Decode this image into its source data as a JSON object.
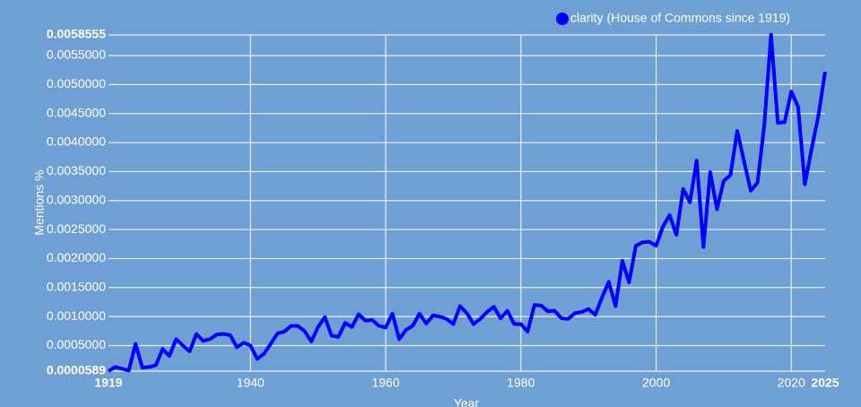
{
  "chart_data": {
    "type": "line",
    "legend_label": "clarity (House of Commons since 1919)",
    "xlabel": "Year",
    "ylabel": "Mentions %",
    "legend_position": "top-right",
    "grid": true,
    "x": [
      1919,
      1920,
      1921,
      1922,
      1923,
      1924,
      1925,
      1926,
      1927,
      1928,
      1929,
      1930,
      1931,
      1932,
      1933,
      1934,
      1935,
      1936,
      1937,
      1938,
      1939,
      1940,
      1941,
      1942,
      1943,
      1944,
      1945,
      1946,
      1947,
      1948,
      1949,
      1950,
      1951,
      1952,
      1953,
      1954,
      1955,
      1956,
      1957,
      1958,
      1959,
      1960,
      1961,
      1962,
      1963,
      1964,
      1965,
      1966,
      1967,
      1968,
      1969,
      1970,
      1971,
      1972,
      1973,
      1974,
      1975,
      1976,
      1977,
      1978,
      1979,
      1980,
      1981,
      1982,
      1983,
      1984,
      1985,
      1986,
      1987,
      1988,
      1989,
      1990,
      1991,
      1992,
      1993,
      1994,
      1995,
      1996,
      1997,
      1998,
      1999,
      2000,
      2001,
      2002,
      2003,
      2004,
      2005,
      2006,
      2007,
      2008,
      2009,
      2010,
      2011,
      2012,
      2013,
      2014,
      2015,
      2016,
      2017,
      2018,
      2019,
      2020,
      2021,
      2022,
      2023,
      2024,
      2025
    ],
    "series": [
      {
        "name": "clarity (House of Commons since 1919)",
        "color": "#0000ff",
        "values": [
          6e-05,
          0.00013,
          0.0001,
          7e-05,
          0.00053,
          0.00012,
          0.00013,
          0.00016,
          0.00044,
          0.00032,
          0.00061,
          0.0005,
          0.0004,
          0.0007,
          0.00058,
          0.00061,
          0.00069,
          0.0007,
          0.00068,
          0.00047,
          0.00055,
          0.0005,
          0.00027,
          0.00036,
          0.00053,
          0.00071,
          0.00074,
          0.00084,
          0.00084,
          0.00075,
          0.00057,
          0.00082,
          0.00099,
          0.00067,
          0.00065,
          0.00089,
          0.00082,
          0.00104,
          0.00093,
          0.00094,
          0.00084,
          0.00081,
          0.00105,
          0.00061,
          0.00077,
          0.00084,
          0.00105,
          0.00088,
          0.00102,
          0.001,
          0.00096,
          0.00087,
          0.00118,
          0.00106,
          0.00087,
          0.00096,
          0.00108,
          0.00117,
          0.00097,
          0.0011,
          0.00087,
          0.00087,
          0.00074,
          0.0012,
          0.00119,
          0.00109,
          0.0011,
          0.00097,
          0.00096,
          0.00106,
          0.00108,
          0.00113,
          0.00103,
          0.00133,
          0.0016,
          0.00118,
          0.00196,
          0.00159,
          0.00222,
          0.00228,
          0.00229,
          0.00222,
          0.00255,
          0.00275,
          0.00241,
          0.0032,
          0.00297,
          0.00369,
          0.0022,
          0.00349,
          0.00285,
          0.00334,
          0.00344,
          0.0042,
          0.00368,
          0.00317,
          0.00331,
          0.0043,
          0.00586,
          0.00434,
          0.00435,
          0.00488,
          0.00462,
          0.00328,
          0.00389,
          0.00446,
          0.00522
        ]
      }
    ],
    "xlim": [
      1919,
      2025
    ],
    "xticks": [
      1919,
      1940,
      1960,
      1980,
      2000,
      2020,
      2025
    ],
    "ylim": [
      5.89e-05,
      0.0058555
    ],
    "yticks": [
      {
        "value": 5.89e-05,
        "label": "0.0000589"
      },
      {
        "value": 0.0005,
        "label": "0.0005000"
      },
      {
        "value": 0.001,
        "label": "0.0010000"
      },
      {
        "value": 0.0015,
        "label": "0.0015000"
      },
      {
        "value": 0.002,
        "label": "0.0020000"
      },
      {
        "value": 0.0025,
        "label": "0.0025000"
      },
      {
        "value": 0.003,
        "label": "0.0030000"
      },
      {
        "value": 0.0035,
        "label": "0.0035000"
      },
      {
        "value": 0.004,
        "label": "0.0040000"
      },
      {
        "value": 0.0045,
        "label": "0.0045000"
      },
      {
        "value": 0.005,
        "label": "0.0050000"
      },
      {
        "value": 0.0055,
        "label": "0.0055000"
      },
      {
        "value": 0.0058555,
        "label": "0.0058555"
      }
    ]
  }
}
